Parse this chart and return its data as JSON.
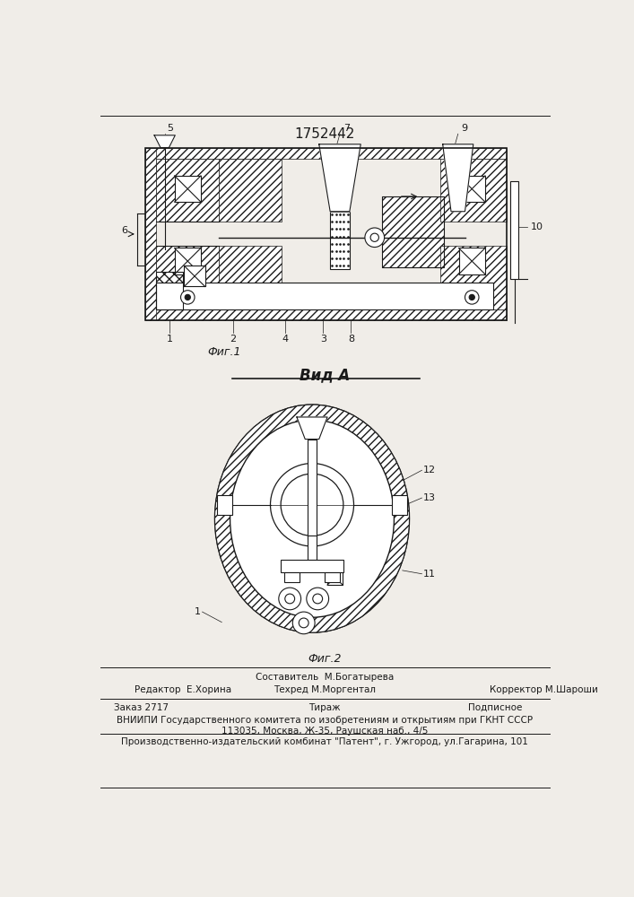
{
  "patent_number": "1752442",
  "bg_color": "#f0ede8",
  "line_color": "#1a1a1a",
  "fig1_label": "Фиг.1",
  "fig2_label": "Вид А",
  "fig3_label": "Фиг.2",
  "footer": {
    "sostavitel": "Составитель  М.Богатырева",
    "redaktor": "Редактор  Е.Хорина",
    "tehred": "Техред М.Моргентал",
    "korrektor": "Корректор М.Шароши",
    "zakaz": "Заказ 2717",
    "tirazh": "Тираж",
    "podpisnoe": "Подписное",
    "vniipи1": "ВНИИПИ Государственного комитета по изобретениям и открытиям при ГКНТ СССР",
    "vniipи2": "113035, Москва, Ж-35, Раушская наб., 4/5",
    "proizv": "Производственно-издательский комбинат \"Патент\", г. Ужгород, ул.Гагарина, 101"
  }
}
